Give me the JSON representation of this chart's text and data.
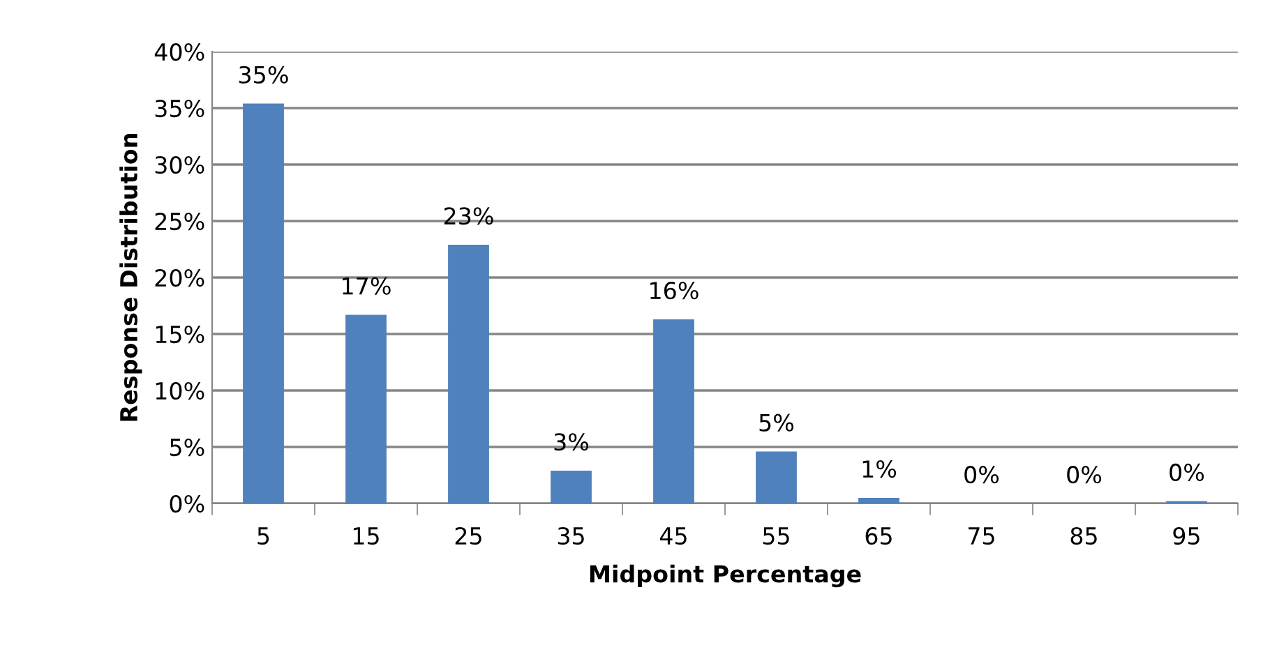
{
  "chart_data": {
    "type": "bar",
    "xlabel": "Midpoint Percentage",
    "ylabel": "Response Distribution",
    "categories": [
      "5",
      "15",
      "25",
      "35",
      "45",
      "55",
      "65",
      "75",
      "85",
      "95"
    ],
    "values": [
      35.4,
      16.7,
      22.9,
      2.9,
      16.3,
      4.6,
      0.5,
      0,
      0,
      0.2
    ],
    "value_labels": [
      "35%",
      "17%",
      "23%",
      "3%",
      "16%",
      "5%",
      "1%",
      "0%",
      "0%",
      "0%"
    ],
    "color": "#4f81bd",
    "ylim": [
      0,
      40
    ],
    "yticks": [
      {
        "value": 0,
        "label": "0%"
      },
      {
        "value": 5,
        "label": "5%"
      },
      {
        "value": 10,
        "label": "10%"
      },
      {
        "value": 15,
        "label": "15%"
      },
      {
        "value": 20,
        "label": "20%"
      },
      {
        "value": 25,
        "label": "25%"
      },
      {
        "value": 30,
        "label": "30%"
      },
      {
        "value": 35,
        "label": "35%"
      },
      {
        "value": 40,
        "label": "40%"
      }
    ],
    "grid": "y",
    "legend": false
  }
}
